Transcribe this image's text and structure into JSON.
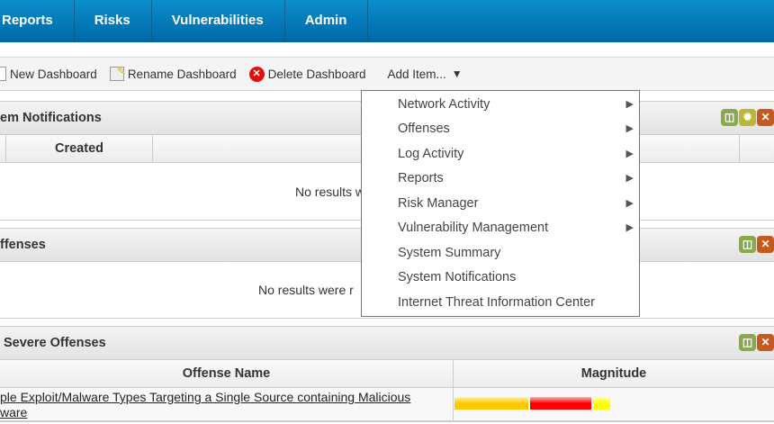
{
  "nav": {
    "tabs": [
      "Reports",
      "Risks",
      "Vulnerabilities",
      "Admin"
    ]
  },
  "toolbar": {
    "new_dashboard": "New Dashboard",
    "rename_dashboard": "Rename Dashboard",
    "delete_dashboard": "Delete Dashboard",
    "add_item": "Add Item...",
    "add_item_arrow": "▼"
  },
  "panels": [
    {
      "title": "em Notifications",
      "columns": [
        "Created"
      ],
      "empty": "No results w"
    },
    {
      "title": "ffenses",
      "empty": "No results were r"
    },
    {
      "title": "Severe Offenses",
      "columns": [
        "Offense Name",
        "Magnitude"
      ],
      "rows": [
        {
          "offense_name": "ple Exploit/Malware Types Targeting a Single Source containing Malicious",
          "offense_name_line2": "ware",
          "magnitude": {
            "relevance": "#ffc800",
            "severity": "#ff0000",
            "credibility": "#ffff00"
          }
        }
      ]
    }
  ],
  "menu": {
    "items": [
      {
        "label": "Network Activity",
        "submenu": "▶"
      },
      {
        "label": "Offenses",
        "submenu": "▶"
      },
      {
        "label": "Log Activity",
        "submenu": "▶"
      },
      {
        "label": "Reports",
        "submenu": "▶"
      },
      {
        "label": "Risk Manager",
        "submenu": "▶"
      },
      {
        "label": "Vulnerability Management",
        "submenu": "▶"
      },
      {
        "label": "System Summary"
      },
      {
        "label": "System Notifications"
      },
      {
        "label": "Internet Threat Information Center"
      }
    ]
  },
  "colors": {
    "nav": "#0a8fcb",
    "maximize": "#8aaa4a",
    "settings": "#b6b83a",
    "close": "#c45a1e"
  }
}
